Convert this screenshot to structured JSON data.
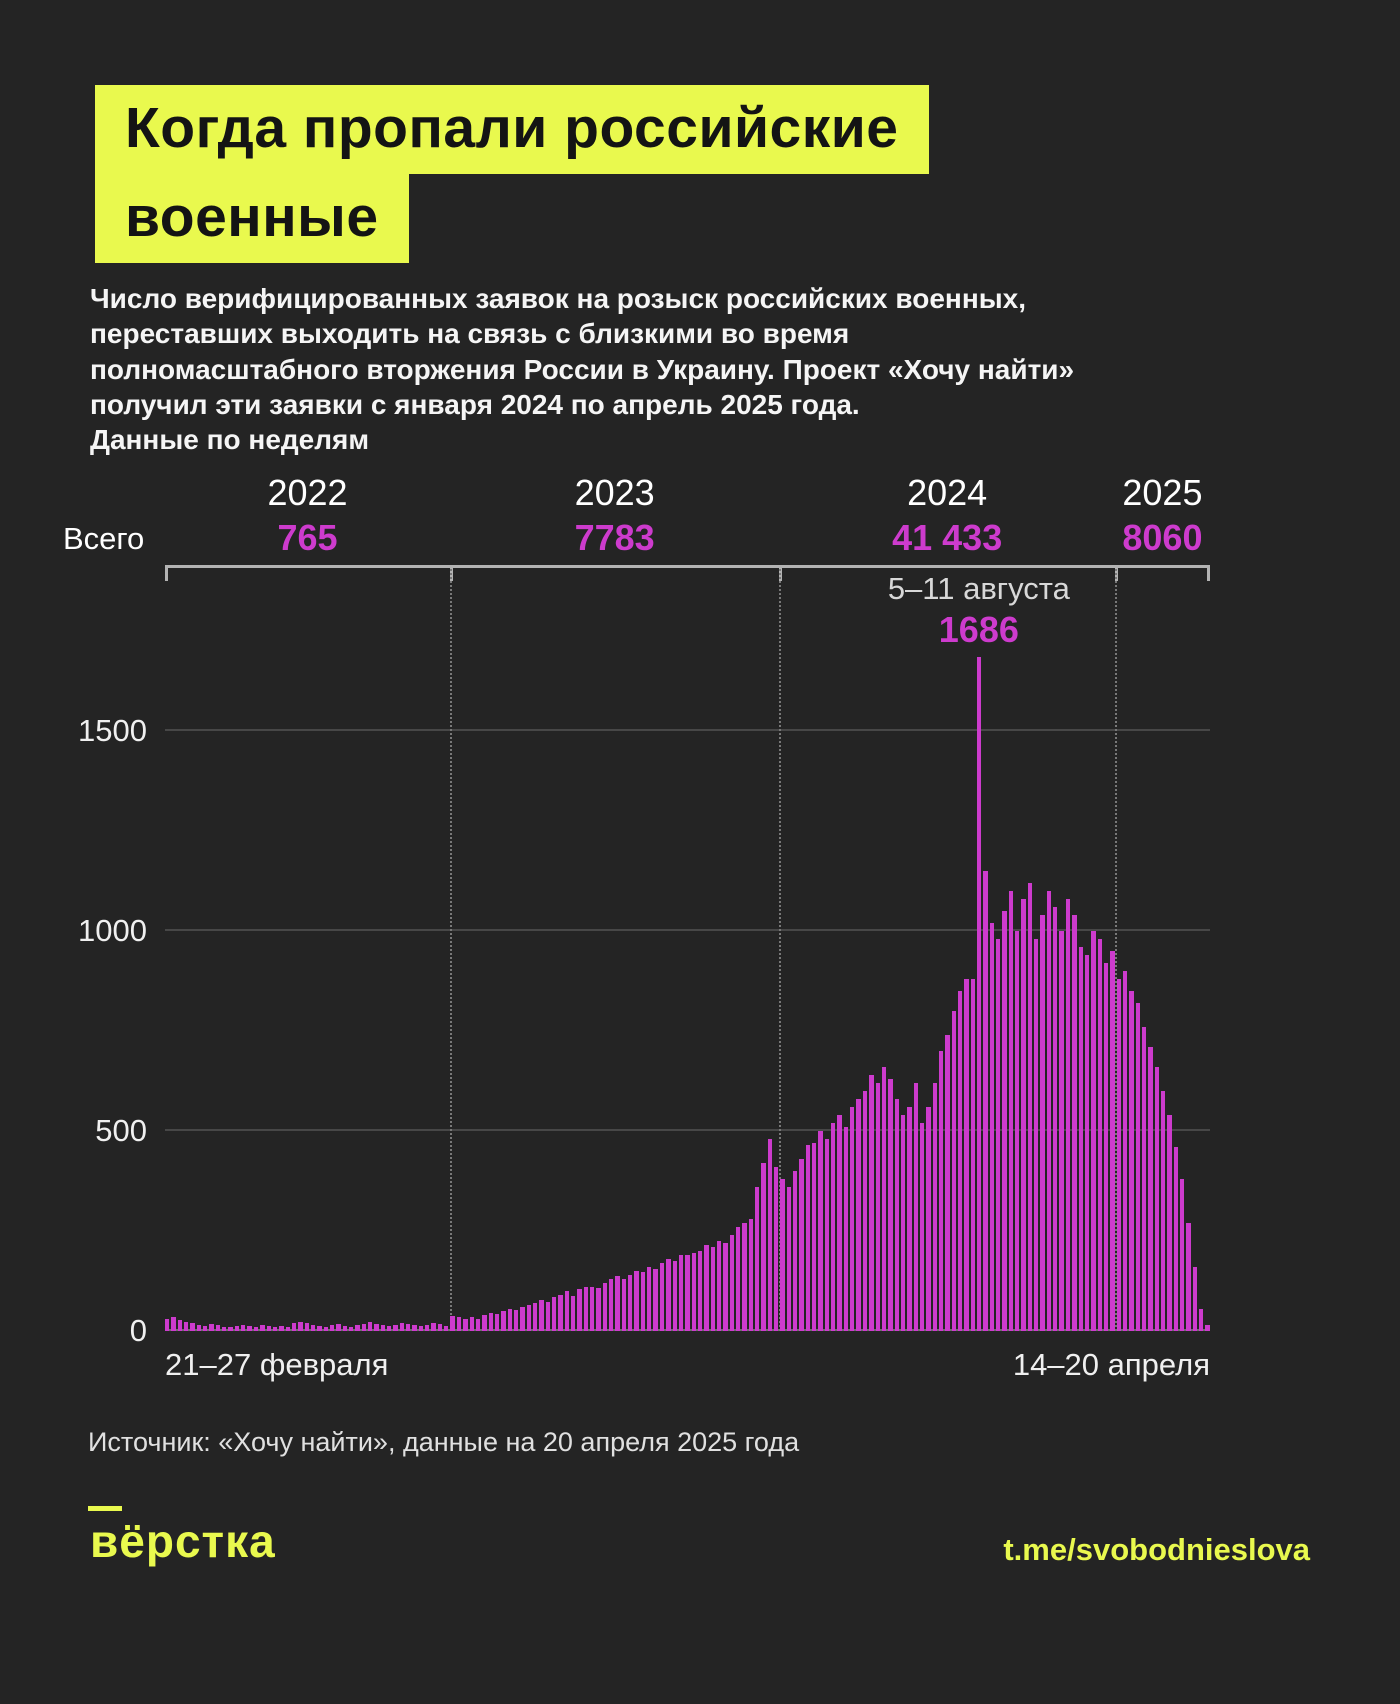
{
  "header": {
    "title_line1": "Когда пропали российские",
    "title_line2": "военные",
    "description": "Число верифицированных заявок на розыск российских военных,\nпереставших выходить на связь с близкими во время\nполномасштабного вторжения России в Украину. Проект «Хочу найти»\nполучил эти заявки с января 2024 по апрель 2025 года.\nДанные по неделям"
  },
  "colors": {
    "background": "#242424",
    "accent_yellow": "#e9f94e",
    "accent_magenta": "#cd3bcd",
    "gridline": "#474747"
  },
  "chart_data": {
    "type": "bar",
    "title": "Когда пропали российские военные",
    "total_label": "Всего",
    "x_start_label": "21–27 февраля",
    "x_end_label": "14–20 апреля",
    "yticks": [
      0,
      500,
      1000,
      1500
    ],
    "ylim": [
      0,
      1725
    ],
    "grid": true,
    "legend": "none",
    "years": [
      {
        "label": "2022",
        "total": "765",
        "weeks": 45
      },
      {
        "label": "2023",
        "total": "7783",
        "weeks": 52
      },
      {
        "label": "2024",
        "total": "41 433",
        "weeks": 53
      },
      {
        "label": "2025",
        "total": "8060",
        "weeks": 15
      }
    ],
    "annotation": {
      "label": "5–11 августа",
      "value": "1686",
      "bar_index": 128
    },
    "values": [
      30,
      35,
      28,
      24,
      20,
      16,
      14,
      18,
      15,
      12,
      10,
      13,
      16,
      14,
      12,
      15,
      13,
      11,
      14,
      12,
      20,
      24,
      21,
      17,
      14,
      12,
      16,
      18,
      14,
      11,
      15,
      19,
      23,
      18,
      15,
      13,
      16,
      20,
      18,
      15,
      13,
      17,
      21,
      19,
      14,
      38,
      35,
      32,
      36,
      32,
      42,
      46,
      44,
      50,
      55,
      53,
      60,
      66,
      72,
      78,
      74,
      85,
      92,
      100,
      88,
      106,
      112,
      112,
      108,
      122,
      130,
      138,
      130,
      142,
      152,
      148,
      160,
      155,
      170,
      180,
      175,
      190,
      190,
      195,
      200,
      215,
      210,
      225,
      220,
      240,
      260,
      270,
      280,
      360,
      420,
      480,
      410,
      380,
      360,
      400,
      430,
      467,
      470,
      500,
      480,
      520,
      540,
      510,
      560,
      580,
      600,
      640,
      620,
      660,
      630,
      580,
      540,
      560,
      620,
      520,
      560,
      620,
      700,
      740,
      800,
      850,
      880,
      880,
      1686,
      1150,
      1020,
      980,
      1050,
      1100,
      1000,
      1080,
      1120,
      980,
      1040,
      1100,
      1060,
      1000,
      1080,
      1040,
      960,
      940,
      1000,
      980,
      920,
      950,
      880,
      900,
      850,
      820,
      760,
      710,
      660,
      600,
      540,
      460,
      380,
      270,
      160,
      55,
      15
    ]
  },
  "footer": {
    "source": "Источник: «Хочу найти», данные на 20 апреля 2025 года",
    "logo": "вёрстка",
    "telegram": "t.me/svobodnieslova"
  }
}
